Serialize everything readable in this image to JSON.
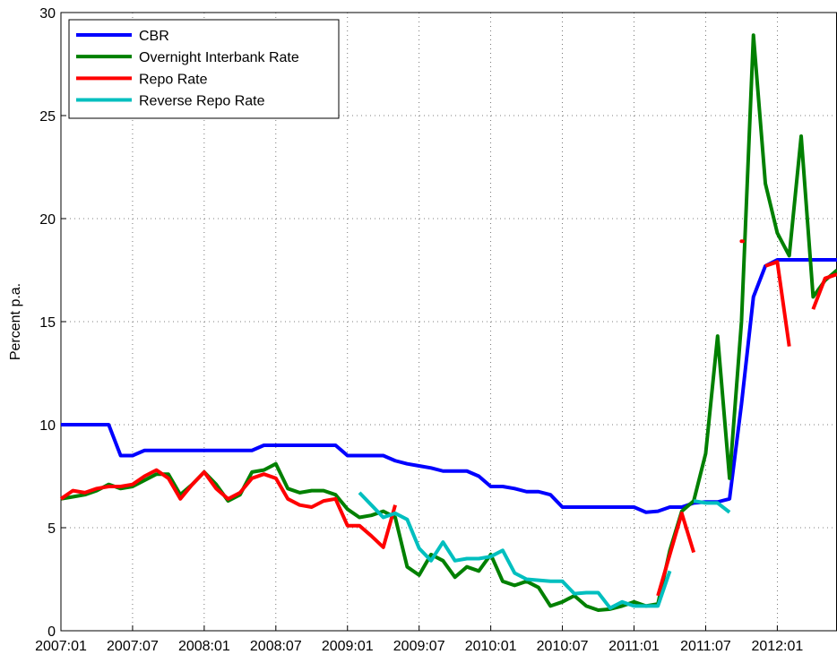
{
  "chart_data": {
    "type": "line",
    "y_label": "Percent p.a.",
    "categories": [
      "2007:01",
      null,
      null,
      null,
      null,
      null,
      "2007:07",
      null,
      null,
      null,
      null,
      null,
      "2008:01",
      null,
      null,
      null,
      null,
      null,
      "2008:07",
      null,
      null,
      null,
      null,
      null,
      "2009:01",
      null,
      null,
      null,
      null,
      null,
      "2009:07",
      null,
      null,
      null,
      null,
      null,
      "2010:01",
      null,
      null,
      null,
      null,
      null,
      "2010:07",
      null,
      null,
      null,
      null,
      null,
      "2011:01",
      null,
      null,
      null,
      null,
      null,
      "2011:07",
      null,
      null,
      null,
      null,
      null,
      "2012:01",
      null,
      null,
      null,
      null,
      null
    ],
    "series": [
      {
        "name": "CBR",
        "color": "#0000ff",
        "values": [
          10,
          10,
          10,
          10,
          10,
          8.5,
          8.5,
          8.75,
          8.75,
          8.75,
          8.75,
          8.75,
          8.75,
          8.75,
          8.75,
          8.75,
          8.75,
          9,
          9,
          9,
          9,
          9,
          9,
          9,
          8.5,
          8.5,
          8.5,
          8.5,
          8.25,
          8.1,
          8.0,
          7.9,
          7.75,
          7.75,
          7.75,
          7.5,
          7,
          7,
          6.9,
          6.75,
          6.75,
          6.6,
          6,
          6,
          6,
          6,
          6,
          6,
          6,
          5.75,
          5.8,
          6,
          6,
          6.2,
          6.25,
          6.25,
          6.4,
          11,
          16.2,
          17.7,
          18,
          18,
          18,
          18,
          18,
          18
        ]
      },
      {
        "name": "Overnight Interbank Rate",
        "color": "#008000",
        "values": [
          6.4,
          6.5,
          6.6,
          6.8,
          7.1,
          6.9,
          7.0,
          7.3,
          7.6,
          7.6,
          6.6,
          7.1,
          7.7,
          7.1,
          6.3,
          6.6,
          7.7,
          7.8,
          8.1,
          6.9,
          6.7,
          6.8,
          6.8,
          6.6,
          5.9,
          5.5,
          5.6,
          5.8,
          5.5,
          3.1,
          2.7,
          3.7,
          3.4,
          2.6,
          3.1,
          2.9,
          3.7,
          2.4,
          2.2,
          2.4,
          2.1,
          1.2,
          1.4,
          1.7,
          1.2,
          1.0,
          1.05,
          1.2,
          1.4,
          1.2,
          1.3,
          3.9,
          5.8,
          6.3,
          8.6,
          14.3,
          7.4,
          15,
          28.9,
          21.7,
          19.3,
          18.2,
          24.0,
          16.2,
          17.0,
          17.5
        ]
      },
      {
        "name": "Repo Rate",
        "color": "#ff0000",
        "values": [
          6.4,
          6.8,
          6.7,
          6.9,
          7.0,
          7.0,
          7.1,
          7.5,
          7.8,
          7.4,
          6.4,
          7.1,
          7.7,
          6.9,
          6.4,
          6.7,
          7.4,
          7.6,
          7.4,
          6.4,
          6.1,
          6.0,
          6.3,
          6.4,
          5.1,
          5.1,
          4.6,
          4.05,
          6.1,
          null,
          null,
          null,
          null,
          null,
          null,
          null,
          null,
          null,
          null,
          null,
          null,
          null,
          null,
          null,
          null,
          null,
          null,
          null,
          null,
          null,
          1.7,
          3.7,
          5.7,
          3.8,
          null,
          null,
          null,
          18.9,
          null,
          17.7,
          17.9,
          13.8,
          null,
          15.6,
          17.1,
          17.3
        ]
      },
      {
        "name": "Reverse Repo Rate",
        "color": "#00bfbf",
        "values": [
          null,
          null,
          null,
          null,
          null,
          null,
          null,
          null,
          null,
          null,
          null,
          null,
          null,
          null,
          null,
          null,
          null,
          null,
          null,
          null,
          null,
          null,
          null,
          null,
          null,
          6.7,
          6.1,
          5.5,
          5.7,
          5.4,
          4.0,
          3.4,
          4.3,
          3.4,
          3.5,
          3.5,
          3.6,
          3.9,
          2.8,
          2.5,
          2.45,
          2.4,
          2.4,
          1.8,
          1.85,
          1.85,
          1.1,
          1.4,
          1.2,
          1.2,
          1.2,
          2.9,
          null,
          6.3,
          6.2,
          6.2,
          5.75,
          null,
          null,
          null,
          null,
          null,
          null,
          null,
          null,
          null
        ]
      }
    ],
    "ylim": [
      0,
      30
    ],
    "yticks": [
      0,
      5,
      10,
      15,
      20,
      25,
      30
    ],
    "grid": true,
    "legend": "upper left"
  }
}
